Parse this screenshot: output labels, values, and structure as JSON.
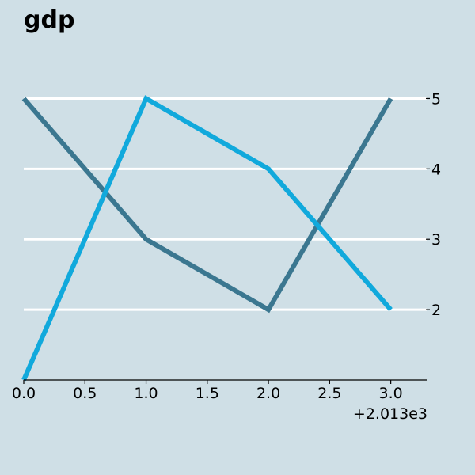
{
  "chart_data": {
    "type": "line",
    "title": "gdp",
    "xlabel": "",
    "ylabel": "",
    "x": [
      0,
      1,
      2,
      3
    ],
    "x_offset_label": "+2.013e3",
    "xlim": [
      0,
      3.3
    ],
    "ylim": [
      1,
      5.5
    ],
    "x_ticks": [
      0.0,
      0.5,
      1.0,
      1.5,
      2.0,
      2.5,
      3.0
    ],
    "x_tick_labels": [
      "0.0",
      "0.5",
      "1.0",
      "1.5",
      "2.0",
      "2.5",
      "3.0"
    ],
    "y_ticks": [
      2,
      3,
      4,
      5
    ],
    "y_tick_labels": [
      "2",
      "3",
      "4",
      "5"
    ],
    "y_axis_side": "right",
    "grid": "horizontal",
    "series": [
      {
        "values": [
          5,
          3,
          2,
          5
        ],
        "color": "#3b7790"
      },
      {
        "values": [
          1,
          5,
          4,
          2
        ],
        "color": "#11a9dc"
      }
    ],
    "colors": {
      "background": "#cfdfe6",
      "grid": "#ffffff",
      "axis": "#000000"
    }
  }
}
